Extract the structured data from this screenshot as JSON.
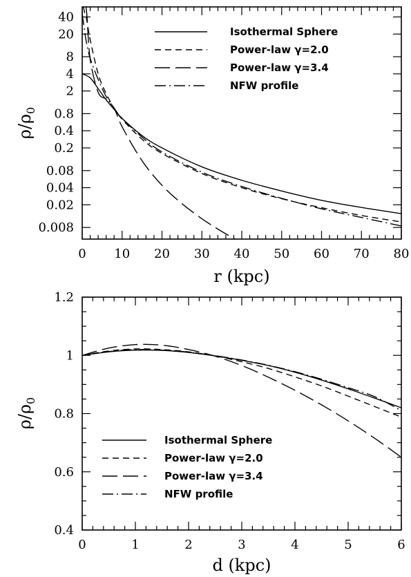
{
  "chart_data": [
    {
      "type": "line",
      "title": "",
      "xlabel": "r (kpc)",
      "ylabel": "ρ/ρ0",
      "xlim": [
        0,
        80
      ],
      "ylim": [
        0.005,
        60
      ],
      "yscale": "log",
      "x_ticks": [
        0,
        10,
        20,
        30,
        40,
        50,
        60,
        70,
        80
      ],
      "y_ticks": [
        0.008,
        0.02,
        0.04,
        0.08,
        0.2,
        0.4,
        0.8,
        2,
        4,
        8,
        20,
        40
      ],
      "legend_position": "top-right",
      "series": [
        {
          "name": "Isothermal Sphere",
          "dash": "solid",
          "x": [
            0,
            2,
            4,
            6,
            8,
            10,
            15,
            20,
            30,
            40,
            50,
            60,
            70,
            80
          ],
          "y": [
            4.0,
            3.4,
            2.2,
            1.4,
            0.95,
            0.66,
            0.33,
            0.2,
            0.093,
            0.054,
            0.035,
            0.024,
            0.018,
            0.014
          ]
        },
        {
          "name": "Power-law γ=2.0",
          "dash": "short",
          "x": [
            0.3,
            0.6,
            1,
            2,
            4,
            6,
            8,
            10,
            15,
            20,
            30,
            40,
            50,
            60,
            70,
            80
          ],
          "y": [
            60,
            48,
            40,
            16,
            4,
            1.8,
            1.0,
            0.64,
            0.284,
            0.16,
            0.071,
            0.04,
            0.0256,
            0.0178,
            0.013,
            0.01
          ]
        },
        {
          "name": "Power-law γ=3.4",
          "dash": "long",
          "x": [
            0.95,
            1.2,
            2,
            4,
            6,
            8,
            10,
            15,
            20,
            25,
            30,
            35,
            40
          ],
          "y": [
            60,
            41,
            7.2,
            1.9,
            1.43,
            1.0,
            0.47,
            0.119,
            0.044,
            0.021,
            0.0114,
            0.0068,
            0.0043
          ]
        },
        {
          "name": "NFW profile",
          "dash": "dashdot",
          "x": [
            0,
            0.5,
            1,
            2,
            4,
            6,
            8,
            10,
            15,
            20,
            30,
            40,
            50,
            60,
            70,
            80
          ],
          "y": [
            45,
            26,
            15,
            7.5,
            3.2,
            1.6,
            1.0,
            0.66,
            0.31,
            0.17,
            0.075,
            0.042,
            0.026,
            0.017,
            0.012,
            0.0085
          ]
        }
      ]
    },
    {
      "type": "line",
      "title": "",
      "xlabel": "d (kpc)",
      "ylabel": "ρ/ρ0",
      "xlim": [
        0,
        6
      ],
      "ylim": [
        0.4,
        1.2
      ],
      "x_ticks": [
        0,
        1,
        2,
        3,
        4,
        5,
        6
      ],
      "y_ticks": [
        0.4,
        0.6,
        0.8,
        1,
        1.2
      ],
      "legend_position": "bottom-left",
      "series": [
        {
          "name": "Isothermal Sphere",
          "dash": "solid",
          "x": [
            0,
            0.5,
            1,
            1.5,
            2,
            2.5,
            3,
            3.5,
            4,
            4.5,
            5,
            5.5,
            6
          ],
          "y": [
            1.0,
            1.012,
            1.018,
            1.017,
            1.01,
            0.998,
            0.983,
            0.965,
            0.942,
            0.915,
            0.885,
            0.853,
            0.82
          ]
        },
        {
          "name": "Power-law γ=2.0",
          "dash": "short",
          "x": [
            0,
            0.5,
            1,
            1.5,
            2,
            2.5,
            3,
            3.5,
            4,
            4.5,
            5,
            5.5,
            6
          ],
          "y": [
            1.0,
            1.015,
            1.022,
            1.02,
            1.012,
            0.998,
            0.978,
            0.955,
            0.926,
            0.895,
            0.86,
            0.824,
            0.788
          ]
        },
        {
          "name": "Power-law γ=3.4",
          "dash": "long",
          "x": [
            0,
            0.5,
            1,
            1.5,
            2,
            2.5,
            3,
            3.5,
            4,
            4.5,
            5,
            5.5,
            6
          ],
          "y": [
            1.0,
            1.025,
            1.037,
            1.035,
            1.02,
            0.997,
            0.965,
            0.925,
            0.88,
            0.83,
            0.775,
            0.715,
            0.65
          ]
        },
        {
          "name": "NFW profile",
          "dash": "dashdot",
          "x": [
            0,
            0.5,
            1,
            1.5,
            2,
            2.5,
            3,
            3.5,
            4,
            4.5,
            5,
            5.5,
            6
          ],
          "y": [
            1.0,
            1.013,
            1.02,
            1.018,
            1.011,
            0.999,
            0.984,
            0.966,
            0.944,
            0.918,
            0.889,
            0.858,
            0.81
          ]
        }
      ]
    }
  ]
}
